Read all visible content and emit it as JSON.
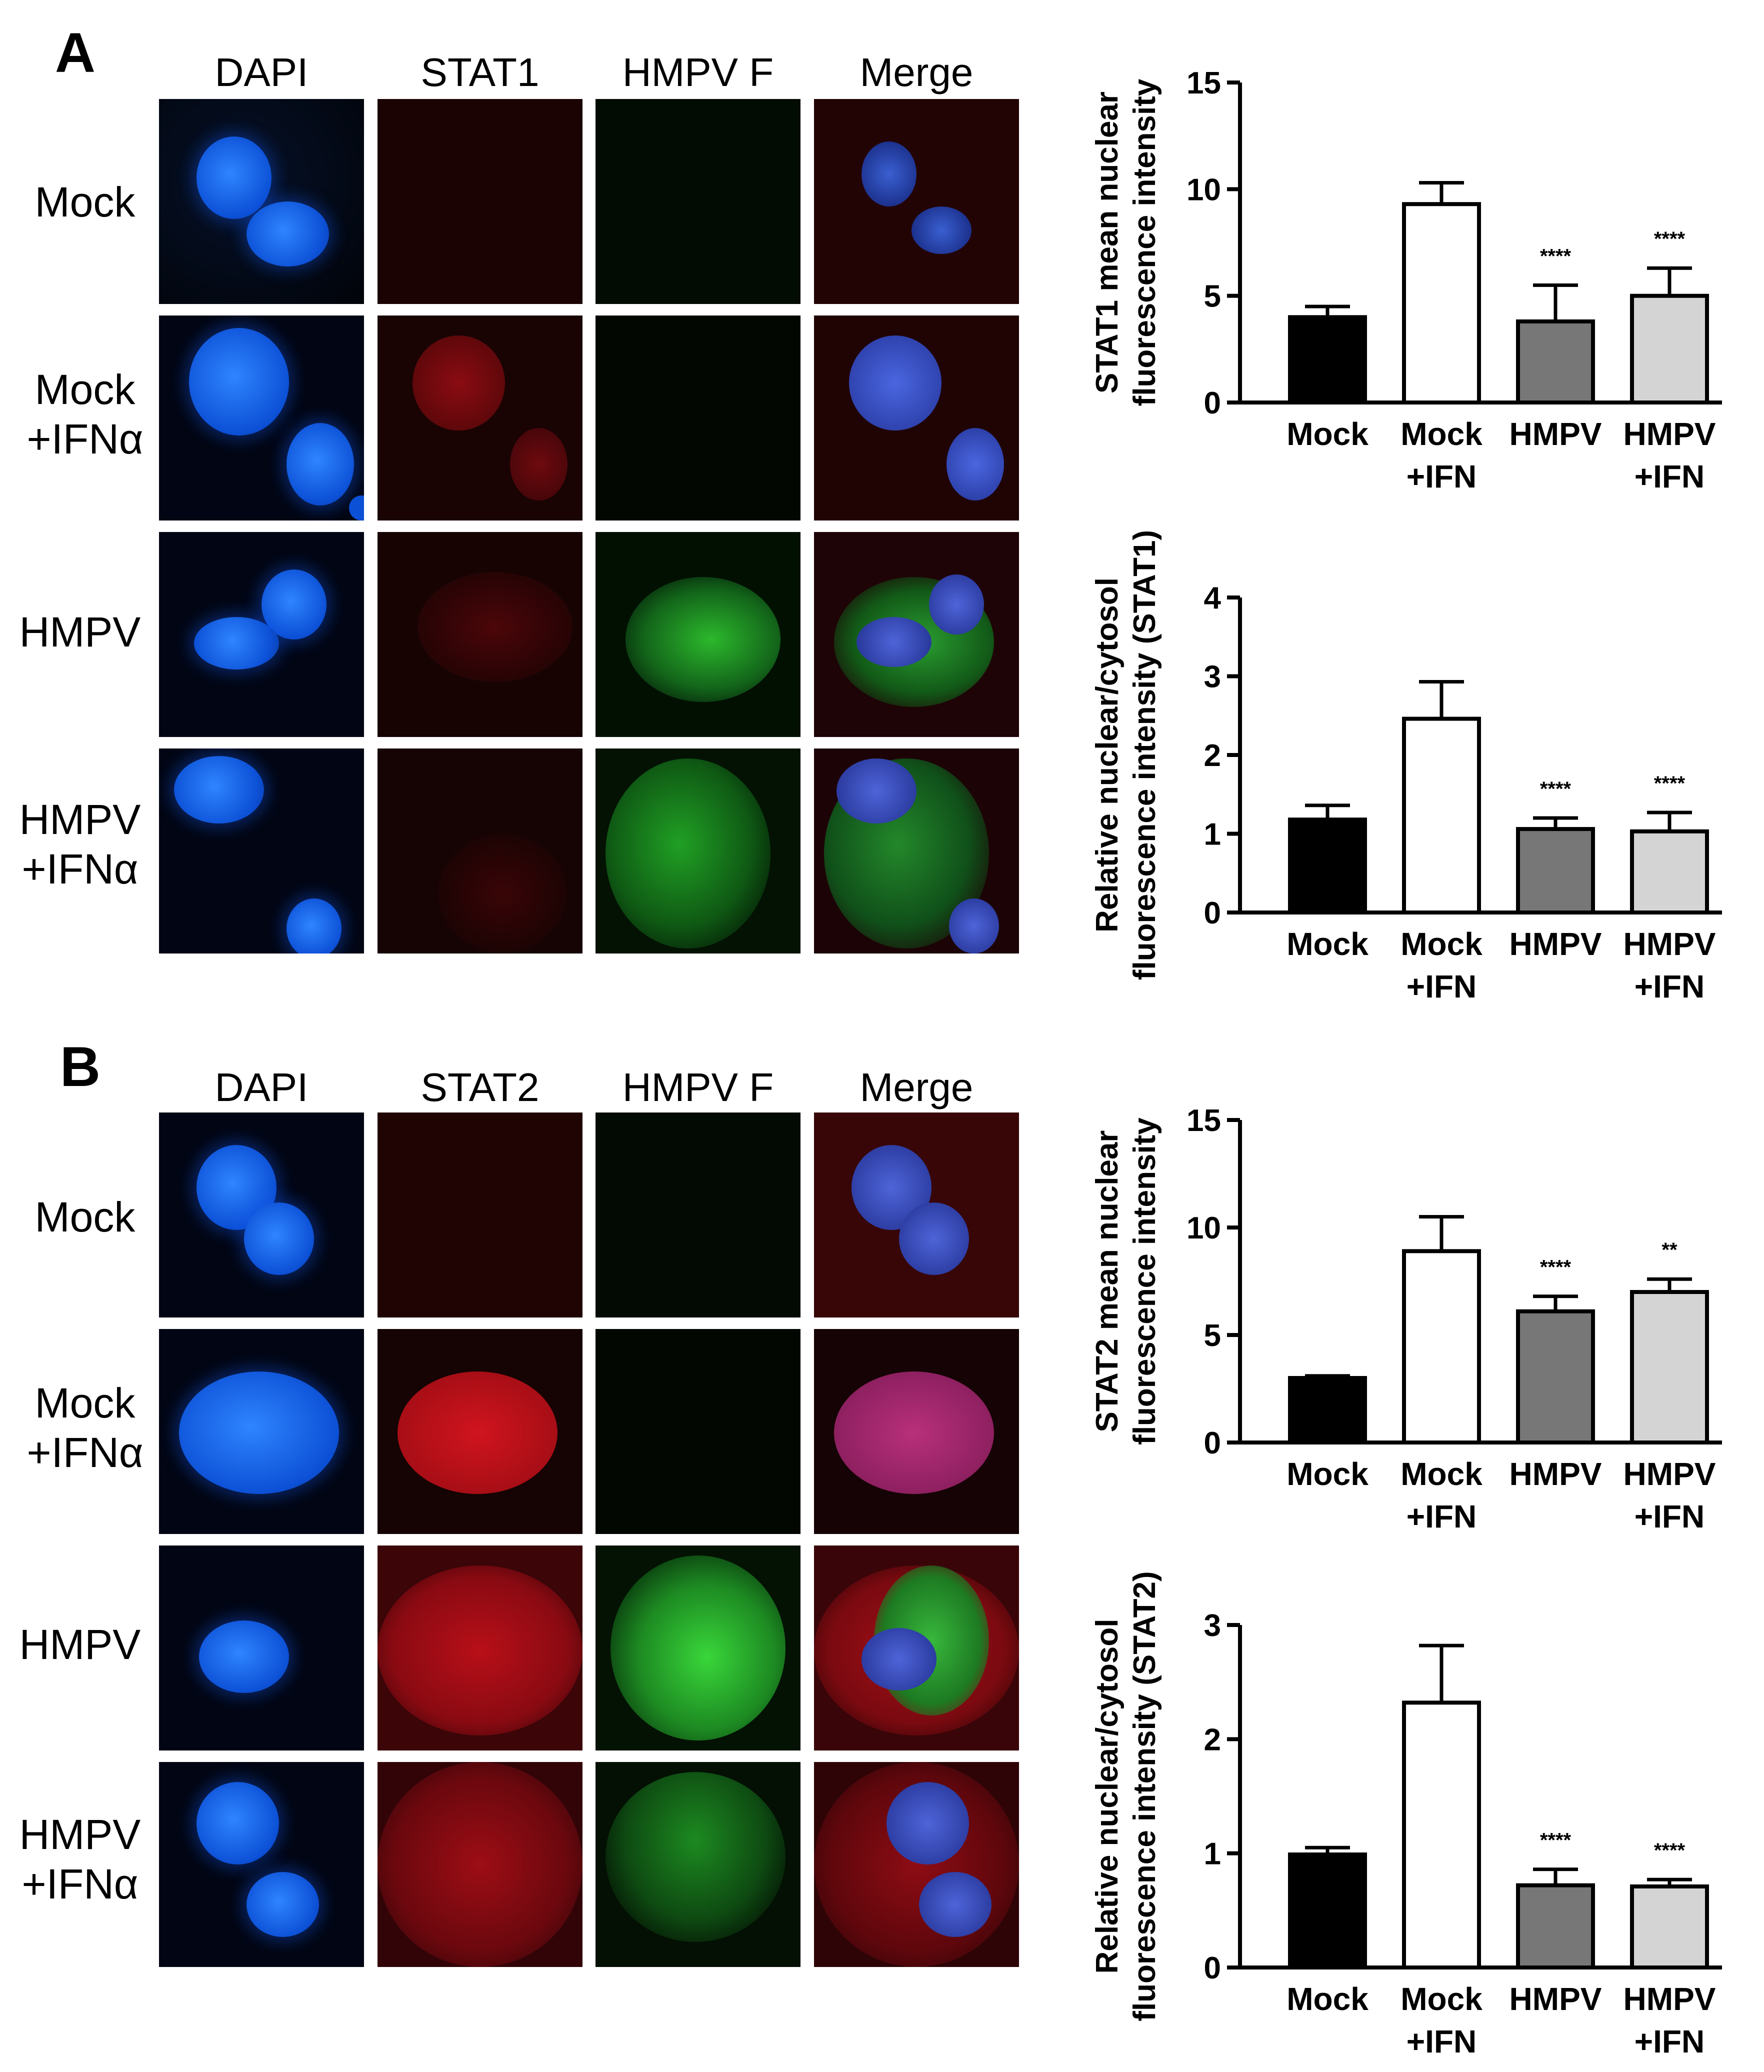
{
  "panels": [
    {
      "letter": "A",
      "columns": [
        "DAPI",
        "STAT1",
        "HMPV F",
        "Merge"
      ],
      "rows": [
        {
          "line1": "Mock",
          "line2": ""
        },
        {
          "line1": "Mock",
          "line2": "+IFNα"
        },
        {
          "line1": "HMPV",
          "line2": ""
        },
        {
          "line1": "HMPV",
          "line2": "+IFNα"
        }
      ]
    },
    {
      "letter": "B",
      "columns": [
        "DAPI",
        "STAT2",
        "HMPV F",
        "Merge"
      ],
      "rows": [
        {
          "line1": "Mock",
          "line2": ""
        },
        {
          "line1": "Mock",
          "line2": "+IFNα"
        },
        {
          "line1": "HMPV",
          "line2": ""
        },
        {
          "line1": "HMPV",
          "line2": "+IFNα"
        }
      ]
    }
  ],
  "colors": {
    "dapi": "#1466f2",
    "stat_red": "#c2101c",
    "hmpv_green": "#28c62d",
    "bar_fills": [
      "#000000",
      "#ffffff",
      "#777777",
      "#d4d4d4"
    ]
  },
  "chart_data": [
    {
      "type": "bar",
      "ylabel": [
        "STAT1 mean nuclear",
        "fluorescence intensity"
      ],
      "categories": [
        [
          "Mock",
          ""
        ],
        [
          "Mock",
          "+IFN"
        ],
        [
          "HMPV",
          ""
        ],
        [
          "HMPV",
          "+IFN"
        ]
      ],
      "values": [
        4.0,
        9.3,
        3.8,
        5.0
      ],
      "errors": [
        0.5,
        1.0,
        1.7,
        1.3
      ],
      "significance": [
        "",
        "",
        "****",
        "****"
      ],
      "ylim": [
        0,
        15
      ],
      "yticks": [
        0,
        5,
        10,
        15
      ]
    },
    {
      "type": "bar",
      "ylabel": [
        "Relative nuclear/cytosol",
        "fluorescence intensity (STAT1)"
      ],
      "categories": [
        [
          "Mock",
          ""
        ],
        [
          "Mock",
          "+IFN"
        ],
        [
          "HMPV",
          ""
        ],
        [
          "HMPV",
          "+IFN"
        ]
      ],
      "values": [
        1.18,
        2.46,
        1.06,
        1.03
      ],
      "errors": [
        0.18,
        0.47,
        0.14,
        0.24
      ],
      "significance": [
        "",
        "",
        "****",
        "****"
      ],
      "ylim": [
        0,
        4
      ],
      "yticks": [
        0,
        1,
        2,
        3,
        4
      ]
    },
    {
      "type": "bar",
      "ylabel": [
        "STAT2 mean nuclear",
        "fluorescence intensity"
      ],
      "categories": [
        [
          "Mock",
          ""
        ],
        [
          "Mock",
          "+IFN"
        ],
        [
          "HMPV",
          ""
        ],
        [
          "HMPV",
          "+IFN"
        ]
      ],
      "values": [
        3.0,
        8.9,
        6.1,
        7.0
      ],
      "errors": [
        0.1,
        1.6,
        0.7,
        0.6
      ],
      "significance": [
        "",
        "",
        "****",
        "**"
      ],
      "ylim": [
        0,
        15
      ],
      "yticks": [
        0,
        5,
        10,
        15
      ]
    },
    {
      "type": "bar",
      "ylabel": [
        "Relative nuclear/cytosol",
        "fluorescence intensity (STAT2)"
      ],
      "categories": [
        [
          "Mock",
          ""
        ],
        [
          "Mock",
          "+IFN"
        ],
        [
          "HMPV",
          ""
        ],
        [
          "HMPV",
          "+IFN"
        ]
      ],
      "values": [
        0.99,
        2.32,
        0.72,
        0.71
      ],
      "errors": [
        0.06,
        0.5,
        0.14,
        0.06
      ],
      "significance": [
        "",
        "",
        "****",
        "****"
      ],
      "ylim": [
        0,
        3
      ],
      "yticks": [
        0,
        1,
        2,
        3
      ]
    }
  ]
}
